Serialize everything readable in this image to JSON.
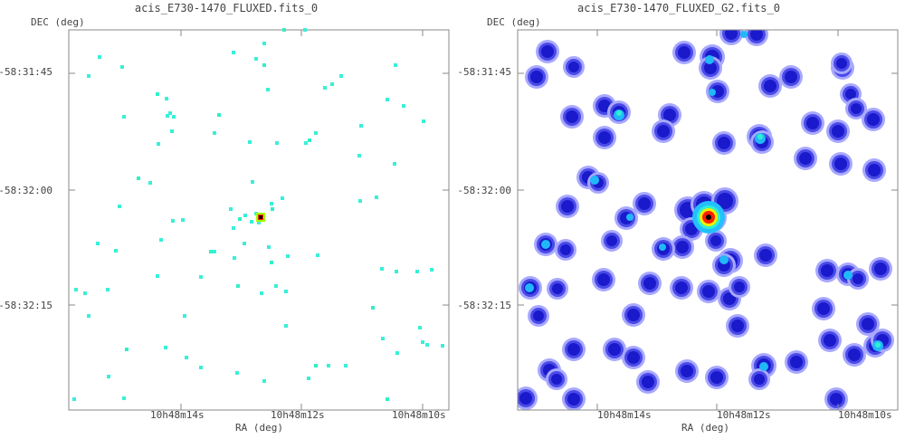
{
  "chart_data": [
    {
      "type": "heatmap",
      "title": "acis_E730-1470_FLUXED.fits_0",
      "xlabel": "RA (deg)",
      "ylabel": "DEC (deg)",
      "x_ticks": [
        "10h48m14s",
        "10h48m12s",
        "10h48m10s"
      ],
      "y_ticks": [
        "-58:31:45",
        "-58:32:00",
        "-58:32:15"
      ],
      "grid": false,
      "colormap": [
        "#ffffff",
        "#2a2ad0",
        "#22c0ff",
        "#30f0d0",
        "#f0f000",
        "#ff2000",
        "#000000"
      ]
    },
    {
      "type": "heatmap",
      "title": "acis_E730-1470_FLUXED_G2.fits_0",
      "xlabel": "RA (deg)",
      "ylabel": "DEC (deg)",
      "x_ticks": [
        "10h48m14s",
        "10h48m12s",
        "10h48m10s"
      ],
      "y_ticks": [
        "-58:31:45",
        "-58:32:00",
        "-58:32:15"
      ],
      "grid": false,
      "colormap": [
        "#ffffff",
        "#2a2ad0",
        "#22c0ff",
        "#30f0d0",
        "#f0f000",
        "#ff2000",
        "#000000"
      ]
    }
  ]
}
